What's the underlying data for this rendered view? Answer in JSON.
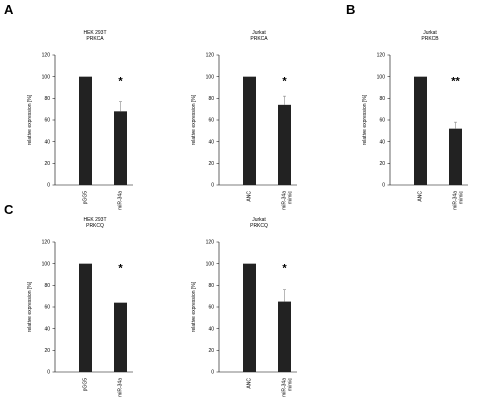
{
  "panel_letters": [
    "A",
    "B",
    "C"
  ],
  "chart_data": [
    {
      "type": "bar",
      "title": [
        "HEK 293T",
        "PRKCA"
      ],
      "ylabel": "relative expression [%]",
      "ylim": [
        0,
        120
      ],
      "yticks": [
        0,
        20,
        40,
        60,
        80,
        100,
        120
      ],
      "categories": [
        [
          "pGG5"
        ],
        [
          "miR-34a"
        ]
      ],
      "values": [
        100,
        68
      ],
      "errors": [
        0,
        9
      ],
      "significance": "*",
      "bar_color": "#222222"
    },
    {
      "type": "bar",
      "title": [
        "Jurkat",
        "PRKCA"
      ],
      "ylabel": "relative expression [%]",
      "ylim": [
        0,
        120
      ],
      "yticks": [
        0,
        20,
        40,
        60,
        80,
        100,
        120
      ],
      "categories": [
        [
          "ANC"
        ],
        [
          "miR-34a",
          "mimic"
        ]
      ],
      "values": [
        100,
        74
      ],
      "errors": [
        0,
        8
      ],
      "significance": "*",
      "bar_color": "#222222"
    },
    {
      "type": "bar",
      "title": [
        "Jurkat",
        "PRKCB"
      ],
      "ylabel": "relative expression [%]",
      "ylim": [
        0,
        120
      ],
      "yticks": [
        0,
        20,
        40,
        60,
        80,
        100,
        120
      ],
      "categories": [
        [
          "ANC"
        ],
        [
          "miR-34a",
          "mimic"
        ]
      ],
      "values": [
        100,
        52
      ],
      "errors": [
        0,
        6
      ],
      "significance": "**",
      "bar_color": "#222222"
    },
    {
      "type": "bar",
      "title": [
        "HEK 293T",
        "PRKCQ"
      ],
      "ylabel": "relative expression [%]",
      "ylim": [
        0,
        120
      ],
      "yticks": [
        0,
        20,
        40,
        60,
        80,
        100,
        120
      ],
      "categories": [
        [
          "pGG5"
        ],
        [
          "miR-34a"
        ]
      ],
      "values": [
        100,
        64
      ],
      "errors": [
        0,
        0
      ],
      "significance": "*",
      "bar_color": "#222222"
    },
    {
      "type": "bar",
      "title": [
        "Jurkat",
        "PRKCQ"
      ],
      "ylabel": "relative expression [%]",
      "ylim": [
        0,
        120
      ],
      "yticks": [
        0,
        20,
        40,
        60,
        80,
        100,
        120
      ],
      "categories": [
        [
          "ANC"
        ],
        [
          "miR-34a",
          "mimic"
        ]
      ],
      "values": [
        100,
        65
      ],
      "errors": [
        0,
        11
      ],
      "significance": "*",
      "bar_color": "#222222"
    }
  ]
}
